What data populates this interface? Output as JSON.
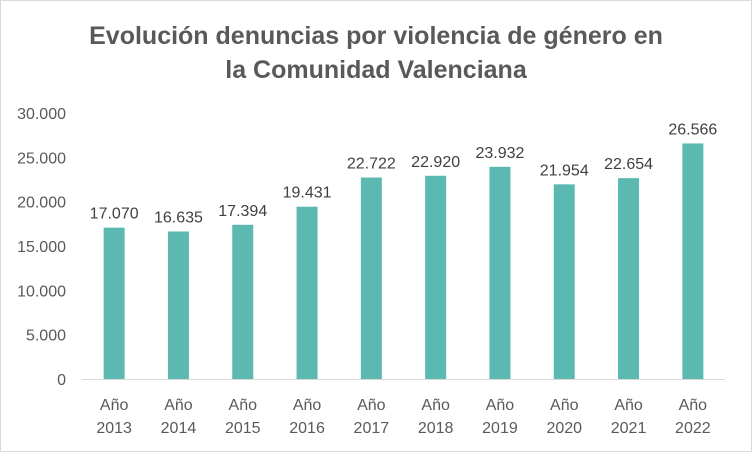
{
  "chart_data": {
    "type": "bar",
    "title_line1": "Evolución denuncias por violencia de género en",
    "title_line2": "la Comunidad Valenciana",
    "categories": [
      [
        "Año",
        "2013"
      ],
      [
        "Año",
        "2014"
      ],
      [
        "Año",
        "2015"
      ],
      [
        "Año",
        "2016"
      ],
      [
        "Año",
        "2017"
      ],
      [
        "Año",
        "2018"
      ],
      [
        "Año",
        "2019"
      ],
      [
        "Año",
        "2020"
      ],
      [
        "Año",
        "2021"
      ],
      [
        "Año",
        "2022"
      ]
    ],
    "values": [
      17070,
      16635,
      17394,
      19431,
      22722,
      22920,
      23932,
      21954,
      22654,
      26566
    ],
    "value_labels": [
      "17.070",
      "16.635",
      "17.394",
      "19.431",
      "22.722",
      "22.920",
      "23.932",
      "21.954",
      "22.654",
      "26.566"
    ],
    "y_ticks": [
      0,
      5000,
      10000,
      15000,
      20000,
      25000,
      30000
    ],
    "y_tick_labels": [
      "0",
      "5.000",
      "10.000",
      "15.000",
      "20.000",
      "25.000",
      "30.000"
    ],
    "ylim": [
      0,
      30000
    ],
    "grid": false,
    "bar_color": "#5bb9b2"
  }
}
